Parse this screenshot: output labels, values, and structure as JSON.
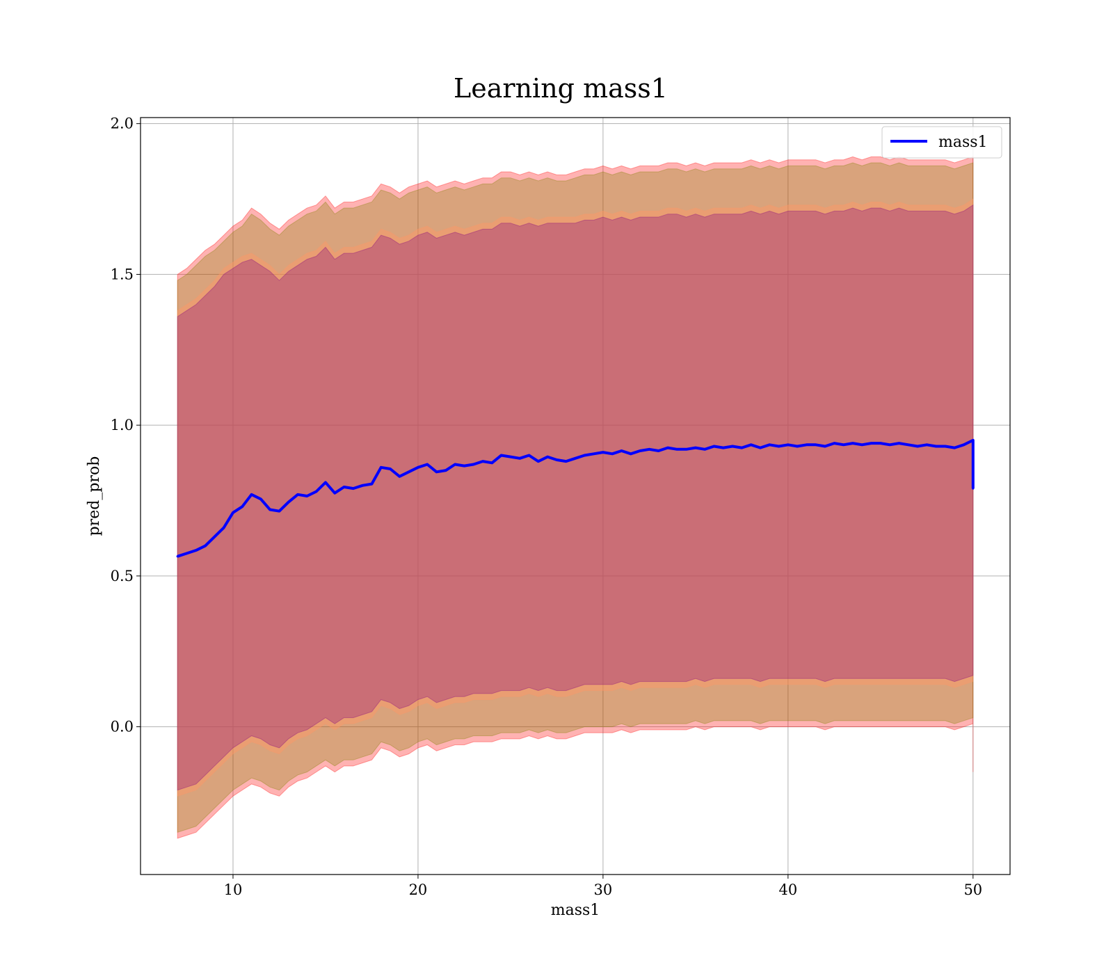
{
  "chart_data": {
    "type": "line",
    "title": "Learning mass1",
    "xlabel": "mass1",
    "ylabel": "pred_prob",
    "xlim": [
      5,
      52
    ],
    "ylim": [
      -0.49,
      2.02
    ],
    "xticks": [
      10,
      20,
      30,
      40,
      50
    ],
    "yticks": [
      0.0,
      0.5,
      1.0,
      1.5,
      2.0
    ],
    "xtick_labels": [
      "10",
      "20",
      "30",
      "40",
      "50"
    ],
    "ytick_labels": [
      "0.0",
      "0.5",
      "1.0",
      "1.5",
      "2.0"
    ],
    "grid": true,
    "legend_placement": "top-right",
    "series": [
      {
        "name": "mass1",
        "color": "#0000ff",
        "x": [
          7,
          7.5,
          8,
          8.5,
          9,
          9.5,
          10,
          10.5,
          11,
          11.5,
          12,
          12.5,
          13,
          13.5,
          14,
          14.5,
          15,
          15.5,
          16,
          16.5,
          17,
          17.5,
          18,
          18.5,
          19,
          19.5,
          20,
          20.5,
          21,
          21.5,
          22,
          22.5,
          23,
          23.5,
          24,
          24.5,
          25,
          25.5,
          26,
          26.5,
          27,
          27.5,
          28,
          28.5,
          29,
          29.5,
          30,
          30.5,
          31,
          31.5,
          32,
          32.5,
          33,
          33.5,
          34,
          34.5,
          35,
          35.5,
          36,
          36.5,
          37,
          37.5,
          38,
          38.5,
          39,
          39.5,
          40,
          40.5,
          41,
          41.5,
          42,
          42.5,
          43,
          43.5,
          44,
          44.5,
          45,
          45.5,
          46,
          46.5,
          47,
          47.5,
          48,
          48.5,
          49,
          49.5,
          50,
          50
        ],
        "y": [
          0.565,
          0.575,
          0.585,
          0.6,
          0.63,
          0.66,
          0.71,
          0.73,
          0.77,
          0.755,
          0.72,
          0.715,
          0.745,
          0.77,
          0.765,
          0.78,
          0.81,
          0.775,
          0.795,
          0.79,
          0.8,
          0.805,
          0.86,
          0.855,
          0.83,
          0.845,
          0.86,
          0.87,
          0.845,
          0.85,
          0.87,
          0.865,
          0.87,
          0.88,
          0.875,
          0.9,
          0.895,
          0.89,
          0.9,
          0.88,
          0.895,
          0.885,
          0.88,
          0.89,
          0.9,
          0.905,
          0.91,
          0.905,
          0.915,
          0.905,
          0.915,
          0.92,
          0.915,
          0.925,
          0.92,
          0.92,
          0.925,
          0.92,
          0.93,
          0.925,
          0.93,
          0.925,
          0.935,
          0.925,
          0.935,
          0.93,
          0.935,
          0.93,
          0.935,
          0.935,
          0.93,
          0.94,
          0.935,
          0.94,
          0.935,
          0.94,
          0.94,
          0.935,
          0.94,
          0.935,
          0.93,
          0.935,
          0.93,
          0.93,
          0.925,
          0.935,
          0.95,
          0.79
        ]
      }
    ],
    "bands": [
      {
        "color": "#ff0000",
        "opacity": 0.3,
        "upper": [
          1.5,
          1.52,
          1.55,
          1.58,
          1.6,
          1.63,
          1.66,
          1.68,
          1.72,
          1.7,
          1.67,
          1.65,
          1.68,
          1.7,
          1.72,
          1.73,
          1.76,
          1.72,
          1.74,
          1.74,
          1.75,
          1.76,
          1.8,
          1.79,
          1.77,
          1.79,
          1.8,
          1.81,
          1.79,
          1.8,
          1.81,
          1.8,
          1.81,
          1.82,
          1.82,
          1.84,
          1.84,
          1.83,
          1.84,
          1.83,
          1.84,
          1.83,
          1.83,
          1.84,
          1.85,
          1.85,
          1.86,
          1.85,
          1.86,
          1.85,
          1.86,
          1.86,
          1.86,
          1.87,
          1.87,
          1.86,
          1.87,
          1.86,
          1.87,
          1.87,
          1.87,
          1.87,
          1.88,
          1.87,
          1.88,
          1.87,
          1.88,
          1.88,
          1.88,
          1.88,
          1.87,
          1.88,
          1.88,
          1.89,
          1.88,
          1.89,
          1.89,
          1.88,
          1.89,
          1.88,
          1.88,
          1.88,
          1.88,
          1.88,
          1.87,
          1.88,
          1.89,
          1.89
        ],
        "lower": [
          -0.37,
          -0.36,
          -0.35,
          -0.32,
          -0.29,
          -0.26,
          -0.23,
          -0.21,
          -0.19,
          -0.2,
          -0.22,
          -0.23,
          -0.2,
          -0.18,
          -0.17,
          -0.15,
          -0.13,
          -0.15,
          -0.13,
          -0.13,
          -0.12,
          -0.11,
          -0.07,
          -0.08,
          -0.1,
          -0.09,
          -0.07,
          -0.06,
          -0.08,
          -0.07,
          -0.06,
          -0.06,
          -0.05,
          -0.05,
          -0.05,
          -0.04,
          -0.04,
          -0.04,
          -0.03,
          -0.04,
          -0.03,
          -0.04,
          -0.04,
          -0.03,
          -0.02,
          -0.02,
          -0.02,
          -0.02,
          -0.01,
          -0.02,
          -0.01,
          -0.01,
          -0.01,
          -0.01,
          -0.01,
          -0.01,
          0,
          -0.01,
          0,
          0,
          0,
          0,
          0,
          -0.01,
          0,
          0,
          0,
          0,
          0,
          0,
          -0.01,
          0,
          0,
          0,
          0,
          0,
          0,
          0,
          0,
          0,
          0,
          0,
          0,
          0,
          -0.01,
          0,
          0.01,
          -0.15
        ]
      },
      {
        "color": "#808000",
        "opacity": 0.3,
        "upper": [
          1.48,
          1.5,
          1.53,
          1.56,
          1.58,
          1.61,
          1.64,
          1.66,
          1.7,
          1.68,
          1.65,
          1.63,
          1.66,
          1.68,
          1.7,
          1.71,
          1.74,
          1.7,
          1.72,
          1.72,
          1.73,
          1.74,
          1.78,
          1.77,
          1.75,
          1.77,
          1.78,
          1.79,
          1.77,
          1.78,
          1.79,
          1.78,
          1.79,
          1.8,
          1.8,
          1.82,
          1.82,
          1.81,
          1.82,
          1.81,
          1.82,
          1.81,
          1.81,
          1.82,
          1.83,
          1.83,
          1.84,
          1.83,
          1.84,
          1.83,
          1.84,
          1.84,
          1.84,
          1.85,
          1.85,
          1.84,
          1.85,
          1.84,
          1.85,
          1.85,
          1.85,
          1.85,
          1.86,
          1.85,
          1.86,
          1.85,
          1.86,
          1.86,
          1.86,
          1.86,
          1.85,
          1.86,
          1.86,
          1.87,
          1.86,
          1.87,
          1.87,
          1.86,
          1.87,
          1.86,
          1.86,
          1.86,
          1.86,
          1.86,
          1.85,
          1.86,
          1.87,
          1.87
        ],
        "lower": [
          -0.35,
          -0.34,
          -0.33,
          -0.3,
          -0.27,
          -0.24,
          -0.21,
          -0.19,
          -0.17,
          -0.18,
          -0.2,
          -0.21,
          -0.18,
          -0.16,
          -0.15,
          -0.13,
          -0.11,
          -0.13,
          -0.11,
          -0.11,
          -0.1,
          -0.09,
          -0.05,
          -0.06,
          -0.08,
          -0.07,
          -0.05,
          -0.04,
          -0.06,
          -0.05,
          -0.04,
          -0.04,
          -0.03,
          -0.03,
          -0.03,
          -0.02,
          -0.02,
          -0.02,
          -0.01,
          -0.02,
          -0.01,
          -0.02,
          -0.02,
          -0.01,
          0,
          0,
          0,
          0,
          0.01,
          0,
          0.01,
          0.01,
          0.01,
          0.01,
          0.01,
          0.01,
          0.02,
          0.01,
          0.02,
          0.02,
          0.02,
          0.02,
          0.02,
          0.01,
          0.02,
          0.02,
          0.02,
          0.02,
          0.02,
          0.02,
          0.01,
          0.02,
          0.02,
          0.02,
          0.02,
          0.02,
          0.02,
          0.02,
          0.02,
          0.02,
          0.02,
          0.02,
          0.02,
          0.02,
          0.01,
          0.02,
          0.03,
          0.03
        ]
      },
      {
        "color": "#ff9966",
        "opacity": 0.45,
        "upper": [
          1.38,
          1.4,
          1.42,
          1.45,
          1.48,
          1.52,
          1.54,
          1.56,
          1.57,
          1.55,
          1.53,
          1.5,
          1.53,
          1.55,
          1.57,
          1.58,
          1.61,
          1.57,
          1.59,
          1.59,
          1.6,
          1.61,
          1.65,
          1.64,
          1.62,
          1.63,
          1.65,
          1.66,
          1.64,
          1.65,
          1.66,
          1.65,
          1.66,
          1.67,
          1.67,
          1.69,
          1.69,
          1.68,
          1.69,
          1.68,
          1.69,
          1.69,
          1.69,
          1.69,
          1.7,
          1.7,
          1.71,
          1.7,
          1.71,
          1.7,
          1.71,
          1.71,
          1.71,
          1.72,
          1.72,
          1.71,
          1.72,
          1.71,
          1.72,
          1.72,
          1.72,
          1.72,
          1.73,
          1.72,
          1.73,
          1.72,
          1.73,
          1.73,
          1.73,
          1.73,
          1.72,
          1.73,
          1.73,
          1.74,
          1.73,
          1.74,
          1.74,
          1.73,
          1.74,
          1.73,
          1.73,
          1.73,
          1.73,
          1.73,
          1.72,
          1.73,
          1.75,
          1.75
        ],
        "lower": [
          -0.23,
          -0.22,
          -0.21,
          -0.18,
          -0.15,
          -0.12,
          -0.09,
          -0.07,
          -0.05,
          -0.06,
          -0.08,
          -0.09,
          -0.06,
          -0.04,
          -0.03,
          -0.01,
          0.01,
          -0.01,
          0.01,
          0.01,
          0.02,
          0.03,
          0.07,
          0.06,
          0.04,
          0.05,
          0.07,
          0.08,
          0.06,
          0.07,
          0.08,
          0.08,
          0.09,
          0.09,
          0.09,
          0.1,
          0.1,
          0.1,
          0.11,
          0.1,
          0.11,
          0.1,
          0.1,
          0.11,
          0.12,
          0.12,
          0.12,
          0.12,
          0.13,
          0.12,
          0.13,
          0.13,
          0.13,
          0.13,
          0.13,
          0.13,
          0.14,
          0.13,
          0.14,
          0.14,
          0.14,
          0.14,
          0.14,
          0.13,
          0.14,
          0.14,
          0.14,
          0.14,
          0.14,
          0.14,
          0.13,
          0.14,
          0.14,
          0.14,
          0.14,
          0.14,
          0.14,
          0.14,
          0.14,
          0.14,
          0.14,
          0.14,
          0.14,
          0.14,
          0.13,
          0.14,
          0.15,
          0.15
        ]
      },
      {
        "color": "#800080",
        "opacity": 0.3,
        "upper": [
          1.36,
          1.38,
          1.4,
          1.43,
          1.46,
          1.5,
          1.52,
          1.54,
          1.55,
          1.53,
          1.51,
          1.48,
          1.51,
          1.53,
          1.55,
          1.56,
          1.59,
          1.55,
          1.57,
          1.57,
          1.58,
          1.59,
          1.63,
          1.62,
          1.6,
          1.61,
          1.63,
          1.64,
          1.62,
          1.63,
          1.64,
          1.63,
          1.64,
          1.65,
          1.65,
          1.67,
          1.67,
          1.66,
          1.67,
          1.66,
          1.67,
          1.67,
          1.67,
          1.67,
          1.68,
          1.68,
          1.69,
          1.68,
          1.69,
          1.68,
          1.69,
          1.69,
          1.69,
          1.7,
          1.7,
          1.69,
          1.7,
          1.69,
          1.7,
          1.7,
          1.7,
          1.7,
          1.71,
          1.7,
          1.71,
          1.7,
          1.71,
          1.71,
          1.71,
          1.71,
          1.7,
          1.71,
          1.71,
          1.72,
          1.71,
          1.72,
          1.72,
          1.71,
          1.72,
          1.71,
          1.71,
          1.71,
          1.71,
          1.71,
          1.7,
          1.71,
          1.73,
          1.73
        ],
        "lower": [
          -0.21,
          -0.2,
          -0.19,
          -0.16,
          -0.13,
          -0.1,
          -0.07,
          -0.05,
          -0.03,
          -0.04,
          -0.06,
          -0.07,
          -0.04,
          -0.02,
          -0.01,
          0.01,
          0.03,
          0.01,
          0.03,
          0.03,
          0.04,
          0.05,
          0.09,
          0.08,
          0.06,
          0.07,
          0.09,
          0.1,
          0.08,
          0.09,
          0.1,
          0.1,
          0.11,
          0.11,
          0.11,
          0.12,
          0.12,
          0.12,
          0.13,
          0.12,
          0.13,
          0.12,
          0.12,
          0.13,
          0.14,
          0.14,
          0.14,
          0.14,
          0.15,
          0.14,
          0.15,
          0.15,
          0.15,
          0.15,
          0.15,
          0.15,
          0.16,
          0.15,
          0.16,
          0.16,
          0.16,
          0.16,
          0.16,
          0.15,
          0.16,
          0.16,
          0.16,
          0.16,
          0.16,
          0.16,
          0.15,
          0.16,
          0.16,
          0.16,
          0.16,
          0.16,
          0.16,
          0.16,
          0.16,
          0.16,
          0.16,
          0.16,
          0.16,
          0.16,
          0.15,
          0.16,
          0.17,
          0.17
        ]
      }
    ]
  }
}
